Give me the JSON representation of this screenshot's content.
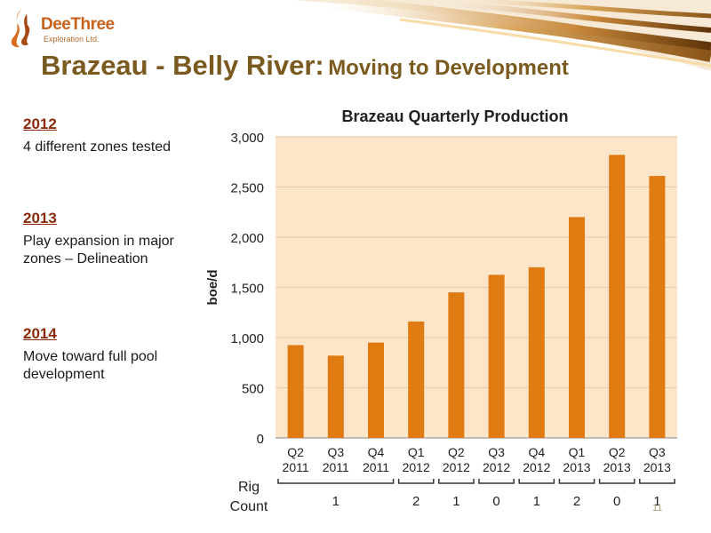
{
  "logo": {
    "name": "DeeThree",
    "subtitle": "Exploration Ltd."
  },
  "slide": {
    "title_main": "Brazeau - Belly River:",
    "title_sub": "Moving to Development",
    "page_number": "11"
  },
  "points": [
    {
      "heading": "2012",
      "text": "4 different zones tested"
    },
    {
      "heading": "2013",
      "text": "Play expansion in major zones – Delineation"
    },
    {
      "heading": "2014",
      "text": "Move toward full pool development"
    }
  ],
  "colors": {
    "bar": "#e07b12",
    "plot_bg": "#fce5c8",
    "title": "#7a5a1e",
    "accent": "#8a2a0a"
  },
  "chart_data": {
    "type": "bar",
    "title": "Brazeau Quarterly Production",
    "xlabel": "",
    "ylabel": "boe/d",
    "categories": [
      "Q2\n2011",
      "Q3\n2011",
      "Q4\n2011",
      "Q1\n2012",
      "Q2\n2012",
      "Q3\n2012",
      "Q4\n2012",
      "Q1\n2013",
      "Q2\n2013",
      "Q3\n2013"
    ],
    "values": [
      925,
      820,
      950,
      1160,
      1450,
      1625,
      1700,
      2200,
      2820,
      2610
    ],
    "ylim": [
      0,
      3000
    ],
    "yticks": [
      0,
      500,
      1000,
      1500,
      2000,
      2500,
      3000
    ],
    "ytick_labels": [
      "0",
      "500",
      "1,000",
      "1,500",
      "2,000",
      "2,500",
      "3,000"
    ],
    "grid": true,
    "legend": false,
    "rig_count": {
      "label": "Rig Count",
      "groups": [
        {
          "from": 0,
          "to": 2,
          "value": "1"
        },
        {
          "from": 3,
          "to": 3,
          "value": "2"
        },
        {
          "from": 4,
          "to": 4,
          "value": "1"
        },
        {
          "from": 5,
          "to": 5,
          "value": "0"
        },
        {
          "from": 6,
          "to": 6,
          "value": "1"
        },
        {
          "from": 7,
          "to": 7,
          "value": "2"
        },
        {
          "from": 8,
          "to": 8,
          "value": "0"
        },
        {
          "from": 9,
          "to": 9,
          "value": "1"
        }
      ]
    }
  }
}
